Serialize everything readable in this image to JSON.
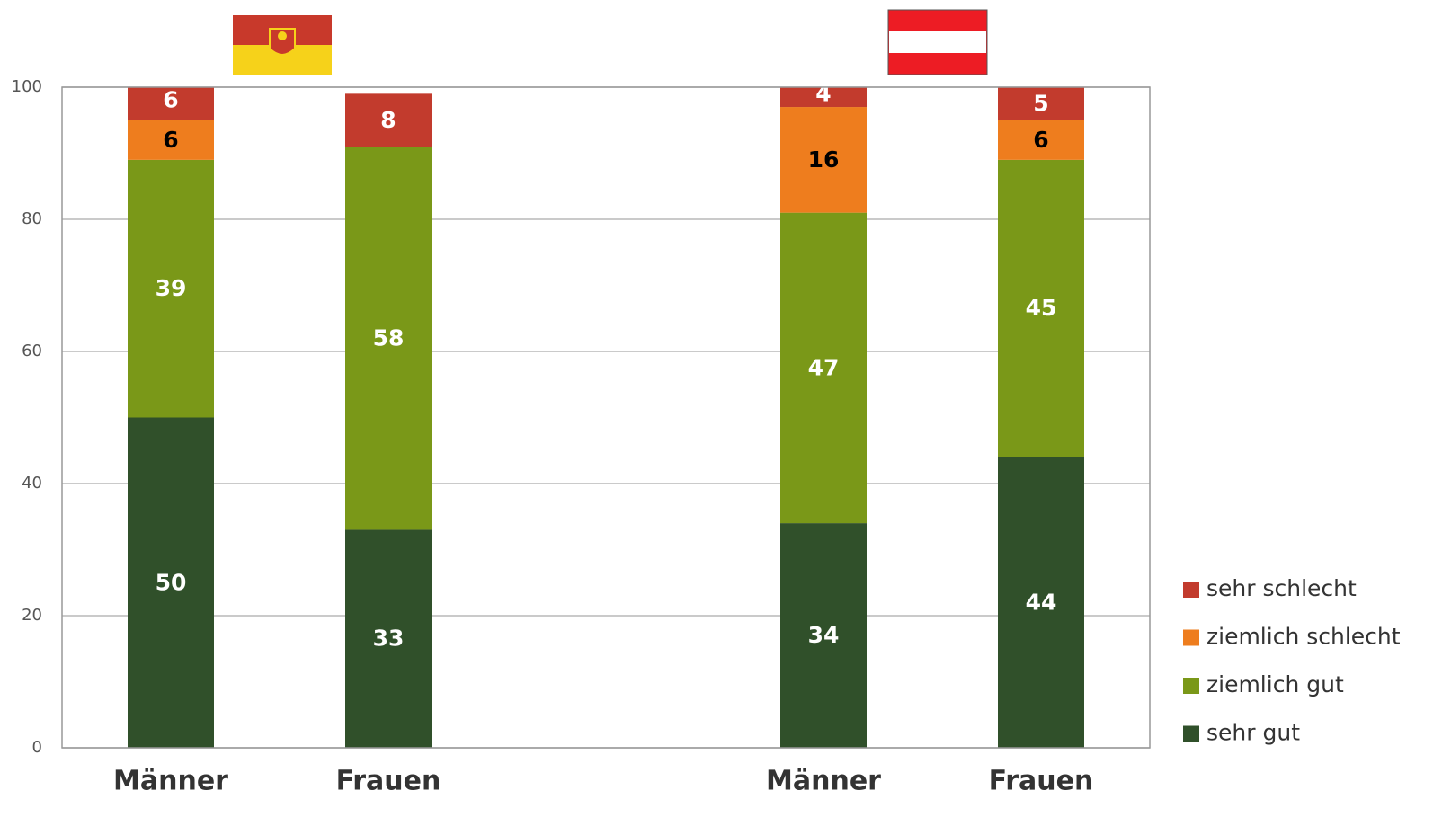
{
  "chart_data": {
    "type": "stacked_bar",
    "categories": [
      "Männer",
      "Frauen",
      null,
      "Männer",
      "Frauen"
    ],
    "series": [
      {
        "name": "sehr gut",
        "color": "#30502a",
        "label_color": "#ffffff",
        "values": [
          50,
          33,
          null,
          34,
          44
        ]
      },
      {
        "name": "ziemlich gut",
        "color": "#7a9818",
        "label_color": "#ffffff",
        "values": [
          39,
          58,
          null,
          47,
          45
        ]
      },
      {
        "name": "ziemlich schlecht",
        "color": "#ee7d1e",
        "label_color": "#000000",
        "values": [
          6,
          null,
          null,
          16,
          6
        ]
      },
      {
        "name": "sehr schlecht",
        "color": "#c23b2d",
        "label_color": "#ffffff",
        "values": [
          6,
          8,
          null,
          4,
          5
        ]
      }
    ],
    "ylim": [
      0,
      100
    ],
    "yticks": [
      0,
      20,
      40,
      60,
      80,
      100
    ],
    "grid": true,
    "legend": "right"
  }
}
